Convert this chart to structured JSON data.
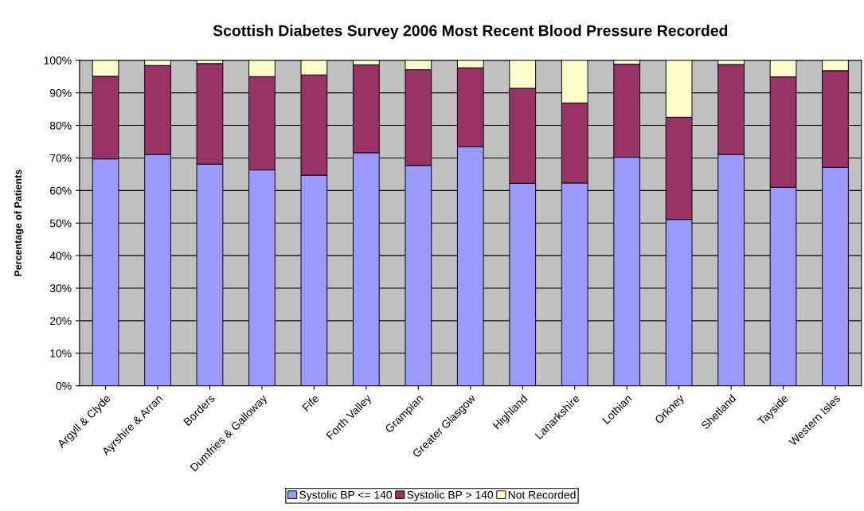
{
  "chart_data": {
    "type": "bar",
    "stacked": true,
    "title": "Scottish Diabetes Survey 2006 Most Recent Blood Pressure Recorded",
    "ylabel": "Percentage of Patients",
    "categories": [
      "Argyll & Clyde",
      "Ayrshire & Arran",
      "Borders",
      "Dumfries & Galloway",
      "Fife",
      "Forth Valley",
      "Grampian",
      "Greater Glasgow",
      "Highland",
      "Lanarkshire",
      "Lothian",
      "Orkney",
      "Shetland",
      "Tayside",
      "Western Isles"
    ],
    "series": [
      {
        "name": "Systolic BP <= 140",
        "color": "#9999ff",
        "values": [
          69.7,
          71.1,
          68.1,
          66.3,
          64.7,
          71.6,
          67.7,
          73.4,
          62.2,
          62.3,
          70.2,
          51.1,
          71.1,
          61.0,
          67.1
        ]
      },
      {
        "name": "Systolic BP > 140",
        "color": "#993366",
        "values": [
          25.4,
          27.3,
          30.9,
          28.7,
          30.8,
          27.0,
          29.4,
          24.3,
          29.2,
          24.6,
          28.6,
          31.4,
          27.6,
          33.9,
          29.7
        ]
      },
      {
        "name": "Not Recorded",
        "color": "#ffffcc",
        "values": [
          4.9,
          1.6,
          1.0,
          5.0,
          4.5,
          1.4,
          2.9,
          2.3,
          8.6,
          13.1,
          1.2,
          17.5,
          1.3,
          5.1,
          3.2
        ]
      }
    ],
    "ylim": [
      0,
      100
    ],
    "yticks": [
      {
        "value": 0,
        "label": "0%"
      },
      {
        "value": 10,
        "label": "10%"
      },
      {
        "value": 20,
        "label": "20%"
      },
      {
        "value": 30,
        "label": "30%"
      },
      {
        "value": 40,
        "label": "40%"
      },
      {
        "value": 50,
        "label": "50%"
      },
      {
        "value": 60,
        "label": "60%"
      },
      {
        "value": 70,
        "label": "70%"
      },
      {
        "value": 80,
        "label": "80%"
      },
      {
        "value": 90,
        "label": "90%"
      },
      {
        "value": 100,
        "label": "100%"
      }
    ],
    "grid": "y",
    "legend": "bottom"
  }
}
